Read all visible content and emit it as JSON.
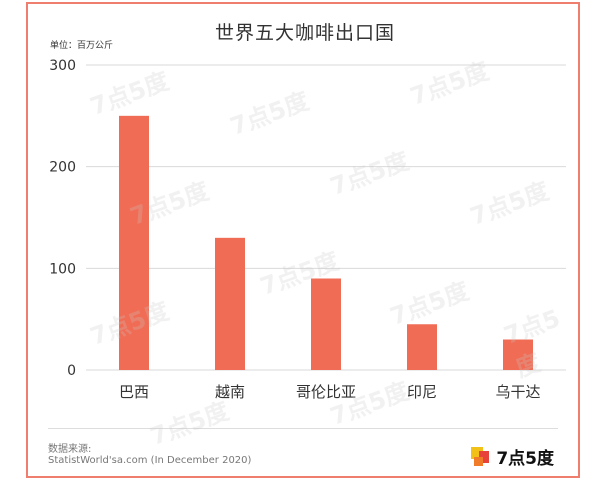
{
  "chart_data": {
    "type": "bar",
    "title": "世界五大咖啡出口国",
    "unit_label": "单位：百万公斤",
    "categories": [
      "巴西",
      "越南",
      "哥伦比亚",
      "印尼",
      "乌干达"
    ],
    "values": [
      250,
      130,
      90,
      45,
      30
    ],
    "ylim": [
      0,
      300
    ],
    "yticks": [
      0,
      100,
      200,
      300
    ],
    "grid": true,
    "bar_color": "#f16c55",
    "grid_color": "#d9d9d9"
  },
  "source": {
    "label": "数据来源:",
    "text": "StatistWorld'sa.com (In December 2020)"
  },
  "logo": {
    "text": "7点5度",
    "colors": [
      "#f2c118",
      "#e8433a",
      "#f07c2a"
    ]
  },
  "watermark": "7点5度"
}
